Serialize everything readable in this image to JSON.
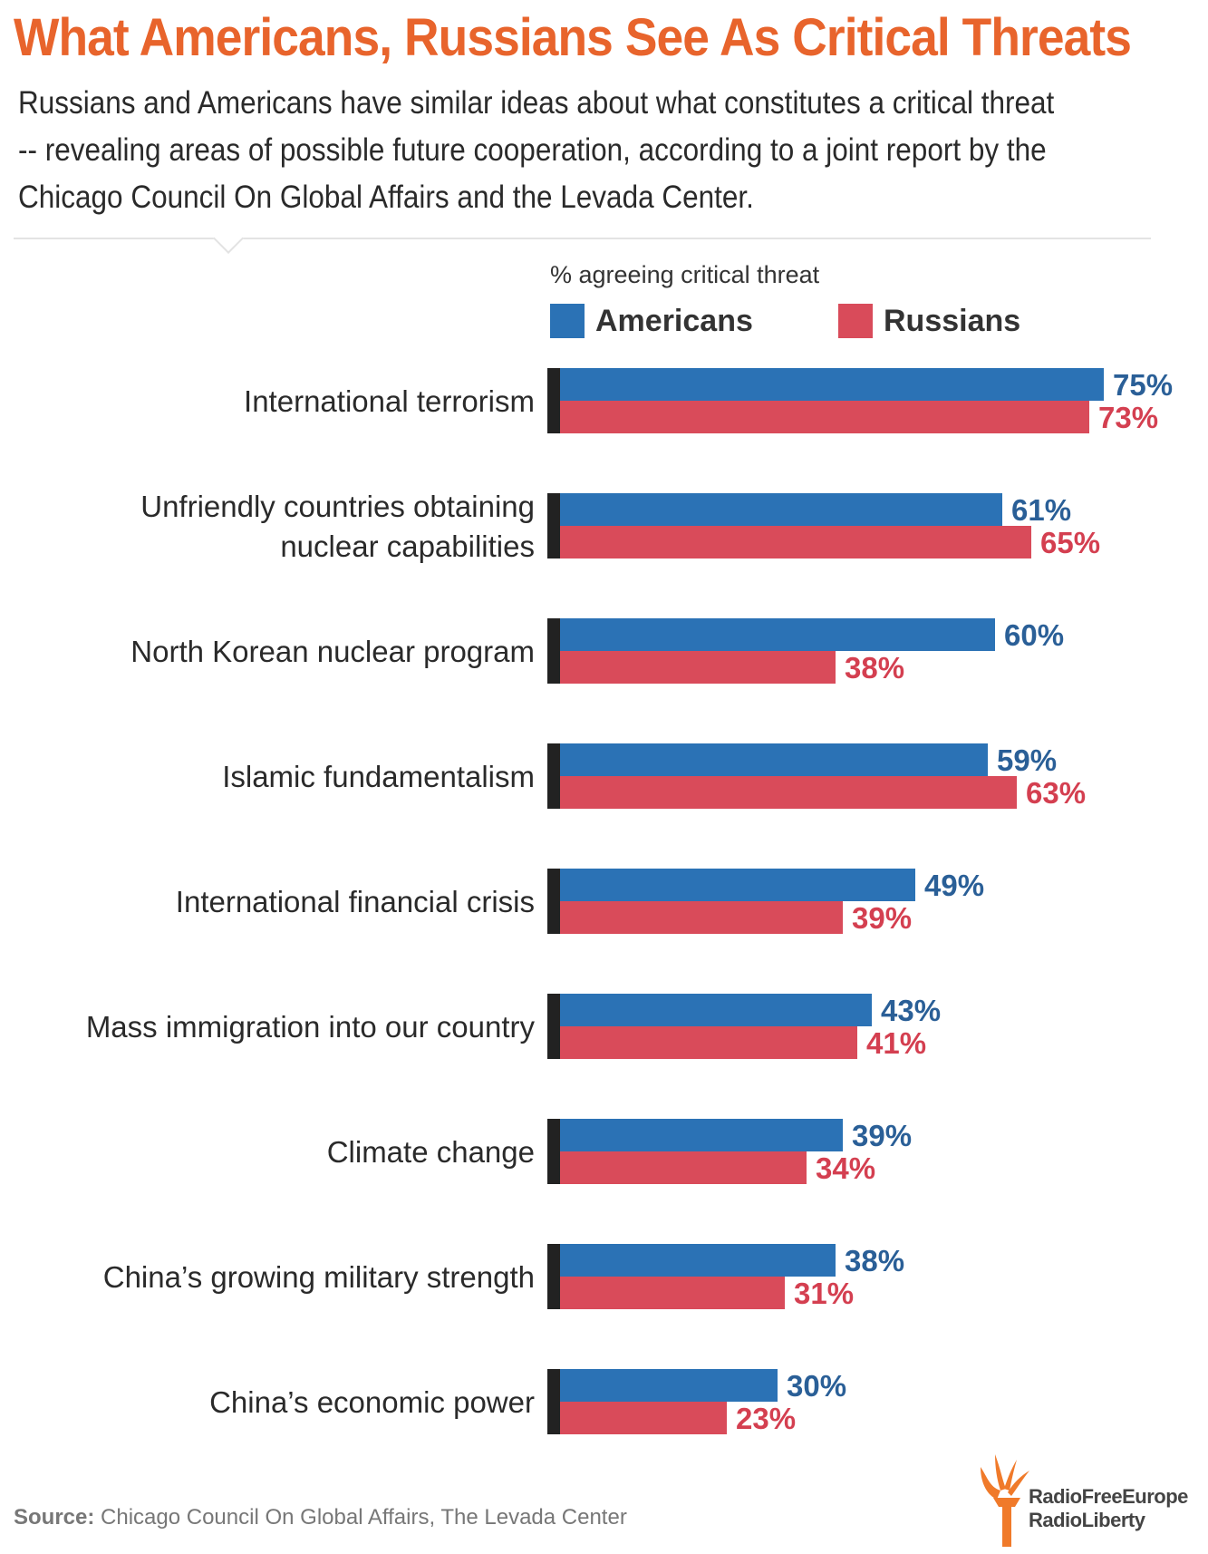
{
  "header": {
    "title": "What Americans, Russians See As Critical Threats",
    "subtitle": "Russians and Americans have similar ideas about what constitutes a critical threat -- revealing areas of possible future cooperation, according to a joint report by the Chicago Council On Global Affairs and the Levada Center."
  },
  "legend": {
    "title": "% agreeing critical threat",
    "items": [
      {
        "label": "Americans",
        "color": "#2b72b5"
      },
      {
        "label": "Russians",
        "color": "#d94b5a"
      }
    ]
  },
  "chart_data": {
    "type": "bar",
    "orientation": "horizontal",
    "categories": [
      "International terrorism",
      "Unfriendly countries obtaining nuclear capabilities",
      "North Korean nuclear program",
      "Islamic fundamentalism",
      "International financial crisis",
      "Mass immigration into our country",
      "Climate change",
      "China’s growing military strength",
      "China’s economic power"
    ],
    "category_lines": [
      [
        "International terrorism"
      ],
      [
        "Unfriendly countries obtaining",
        "nuclear capabilities"
      ],
      [
        "North Korean nuclear program"
      ],
      [
        "Islamic fundamentalism"
      ],
      [
        "International financial crisis"
      ],
      [
        "Mass immigration into our country"
      ],
      [
        "Climate change"
      ],
      [
        "China’s growing military strength"
      ],
      [
        "China’s economic power"
      ]
    ],
    "series": [
      {
        "name": "Americans",
        "color": "#2b72b5",
        "label_color": "#2a5f97",
        "values": [
          75,
          61,
          60,
          59,
          49,
          43,
          39,
          38,
          30
        ],
        "labels": [
          "75%",
          "61%",
          "60%",
          "59%",
          "49%",
          "43%",
          "39%",
          "38%",
          "30%"
        ]
      },
      {
        "name": "Russians",
        "color": "#d94b5a",
        "label_color": "#d43f50",
        "values": [
          73,
          65,
          38,
          63,
          39,
          41,
          34,
          31,
          23
        ],
        "labels": [
          "73%",
          "65%",
          "38%",
          "63%",
          "39%",
          "41%",
          "34%",
          "31%",
          "23%"
        ]
      }
    ],
    "xlim": [
      0,
      100
    ],
    "axis_color": "#222222",
    "grid": false
  },
  "footer": {
    "source_label": "Source:",
    "source_text": "Chicago Council On Global Affairs, The Levada Center",
    "logo_line1": "RadioFreeEurope",
    "logo_line2": "RadioLiberty",
    "logo_color": "#f07a2a"
  }
}
